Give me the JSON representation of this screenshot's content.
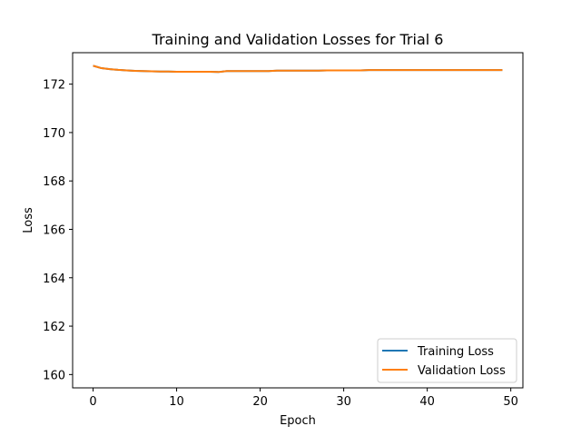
{
  "chart_data": {
    "type": "line",
    "title": "Training and Validation Losses for Trial 6",
    "xlabel": "Epoch",
    "ylabel": "Loss",
    "xlim": [
      -2.45,
      51.45
    ],
    "ylim": [
      159.45,
      173.3
    ],
    "xticks": [
      0,
      10,
      20,
      30,
      40,
      50
    ],
    "yticks": [
      160,
      162,
      164,
      166,
      168,
      170,
      172
    ],
    "grid": false,
    "legend_position": "lower right",
    "series": [
      {
        "name": "Training Loss",
        "color": "#1f77b4",
        "x": [
          0,
          1,
          2,
          3,
          4,
          5,
          6,
          7,
          8,
          9,
          10,
          11,
          12,
          13,
          14,
          15,
          16,
          17,
          18,
          19,
          20,
          21,
          22,
          23,
          24,
          25,
          26,
          27,
          28,
          29,
          30,
          31,
          32,
          33,
          34,
          35,
          36,
          37,
          38,
          39,
          40,
          41,
          42,
          43,
          44,
          45,
          46,
          47,
          48,
          49
        ],
        "values": [
          172.76,
          172.66,
          172.62,
          172.59,
          172.57,
          172.55,
          172.54,
          172.53,
          172.52,
          172.52,
          172.51,
          172.51,
          172.51,
          172.51,
          172.51,
          172.5,
          172.54,
          172.54,
          172.54,
          172.54,
          172.54,
          172.54,
          172.56,
          172.56,
          172.56,
          172.56,
          172.56,
          172.56,
          172.57,
          172.57,
          172.57,
          172.57,
          172.57,
          172.58,
          172.58,
          172.58,
          172.58,
          172.58,
          172.58,
          172.58,
          172.58,
          172.58,
          172.58,
          172.58,
          172.58,
          172.58,
          172.58,
          172.58,
          172.58,
          172.58
        ]
      },
      {
        "name": "Validation Loss",
        "color": "#ff7f0e",
        "x": [
          0,
          1,
          2,
          3,
          4,
          5,
          6,
          7,
          8,
          9,
          10,
          11,
          12,
          13,
          14,
          15,
          16,
          17,
          18,
          19,
          20,
          21,
          22,
          23,
          24,
          25,
          26,
          27,
          28,
          29,
          30,
          31,
          32,
          33,
          34,
          35,
          36,
          37,
          38,
          39,
          40,
          41,
          42,
          43,
          44,
          45,
          46,
          47,
          48,
          49
        ],
        "values": [
          172.76,
          172.66,
          172.62,
          172.59,
          172.57,
          172.55,
          172.54,
          172.53,
          172.52,
          172.52,
          172.51,
          172.51,
          172.51,
          172.51,
          172.51,
          172.5,
          172.54,
          172.54,
          172.54,
          172.54,
          172.54,
          172.54,
          172.56,
          172.56,
          172.56,
          172.56,
          172.56,
          172.56,
          172.57,
          172.57,
          172.57,
          172.57,
          172.57,
          172.58,
          172.58,
          172.58,
          172.58,
          172.58,
          172.58,
          172.58,
          172.58,
          172.58,
          172.58,
          172.58,
          172.58,
          172.58,
          172.58,
          172.58,
          172.58,
          172.58
        ]
      }
    ]
  }
}
